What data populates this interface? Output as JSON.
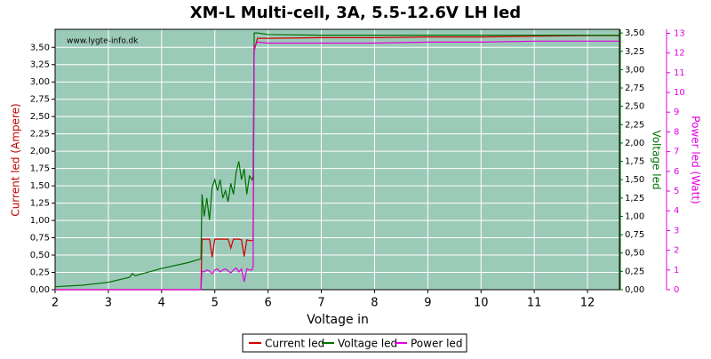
{
  "chart_data": {
    "type": "line",
    "title": "XM-L Multi-cell, 3A, 5.5-12.6V LH led",
    "watermark": "www.lygte-info.dk",
    "x_label": "Voltage in",
    "y_label": "Current led (Ampere)",
    "y2_label": "Voltage led",
    "y3_label": "Power led (Watt)",
    "xlim": [
      2,
      12.6
    ],
    "xticks": [
      2,
      3,
      4,
      5,
      6,
      7,
      8,
      9,
      10,
      11,
      12
    ],
    "ylim": [
      0,
      3.76
    ],
    "yticks": [
      {
        "value": 0,
        "label": "0,00"
      },
      {
        "value": 0.25,
        "label": "0,25"
      },
      {
        "value": 0.5,
        "label": "0,50"
      },
      {
        "value": 0.75,
        "label": "0,75"
      },
      {
        "value": 1,
        "label": "1,00"
      },
      {
        "value": 1.25,
        "label": "1,25"
      },
      {
        "value": 1.5,
        "label": "1,50"
      },
      {
        "value": 1.75,
        "label": "1,75"
      },
      {
        "value": 2,
        "label": "2,00"
      },
      {
        "value": 2.25,
        "label": "2,25"
      },
      {
        "value": 2.5,
        "label": "2,50"
      },
      {
        "value": 2.75,
        "label": "2,75"
      },
      {
        "value": 3,
        "label": "3,00"
      },
      {
        "value": 3.25,
        "label": "3,25"
      },
      {
        "value": 3.5,
        "label": "3,50"
      }
    ],
    "y2lim": [
      0,
      3.55
    ],
    "y2ticks": [
      {
        "value": 0,
        "label": "0,00"
      },
      {
        "value": 0.25,
        "label": "0,25"
      },
      {
        "value": 0.5,
        "label": "0,50"
      },
      {
        "value": 0.75,
        "label": "0,75"
      },
      {
        "value": 1,
        "label": "1,00"
      },
      {
        "value": 1.25,
        "label": "1,25"
      },
      {
        "value": 1.5,
        "label": "1,50"
      },
      {
        "value": 1.75,
        "label": "1,75"
      },
      {
        "value": 2,
        "label": "2,00"
      },
      {
        "value": 2.25,
        "label": "2,25"
      },
      {
        "value": 2.5,
        "label": "2,50"
      },
      {
        "value": 2.75,
        "label": "2,75"
      },
      {
        "value": 3,
        "label": "3,00"
      },
      {
        "value": 3.25,
        "label": "3,25"
      },
      {
        "value": 3.5,
        "label": "3,50"
      }
    ],
    "y3lim": [
      0,
      13.2
    ],
    "y3ticks": [
      0,
      1,
      2,
      3,
      4,
      5,
      6,
      7,
      8,
      9,
      10,
      11,
      12,
      13
    ],
    "grid": true,
    "x": [
      2,
      2.5,
      3,
      3.4,
      3.45,
      3.5,
      4,
      4.5,
      4.74,
      4.76,
      4.8,
      4.85,
      4.9,
      4.95,
      5.0,
      5.05,
      5.1,
      5.15,
      5.2,
      5.25,
      5.3,
      5.35,
      5.4,
      5.45,
      5.5,
      5.55,
      5.6,
      5.65,
      5.7,
      5.72,
      5.74,
      5.8,
      6,
      7,
      8,
      9,
      10,
      11,
      12,
      12.6
    ],
    "series": [
      {
        "name": "Current led",
        "color": "#d00000",
        "axis": "y",
        "values": [
          0,
          0,
          0,
          0,
          0,
          0,
          0,
          0,
          0,
          0.73,
          0.73,
          0.73,
          0.73,
          0.47,
          0.73,
          0.73,
          0.73,
          0.73,
          0.73,
          0.73,
          0.6,
          0.73,
          0.73,
          0.73,
          0.72,
          0.48,
          0.72,
          0.71,
          0.71,
          0.71,
          3.45,
          3.63,
          3.63,
          3.64,
          3.64,
          3.65,
          3.65,
          3.66,
          3.67,
          3.67
        ]
      },
      {
        "name": "Voltage led",
        "color": "#007000",
        "axis": "y2",
        "values": [
          0.04,
          0.06,
          0.1,
          0.17,
          0.22,
          0.19,
          0.29,
          0.37,
          0.42,
          1.3,
          1.0,
          1.25,
          0.95,
          1.4,
          1.5,
          1.35,
          1.5,
          1.25,
          1.35,
          1.2,
          1.45,
          1.3,
          1.6,
          1.75,
          1.5,
          1.65,
          1.3,
          1.55,
          1.5,
          1.55,
          3.5,
          3.5,
          3.48,
          3.47,
          3.47,
          3.47,
          3.47,
          3.47,
          3.47,
          3.47
        ]
      },
      {
        "name": "Power led",
        "color": "#e000e0",
        "axis": "y3",
        "values": [
          0,
          0,
          0,
          0,
          0,
          0,
          0,
          0,
          0,
          0.95,
          0.9,
          1.0,
          0.95,
          0.8,
          1.0,
          1.05,
          0.9,
          1.0,
          1.05,
          0.95,
          0.85,
          1.0,
          1.1,
          0.9,
          1.05,
          0.4,
          1.05,
          1.0,
          1.0,
          1.2,
          12.3,
          12.55,
          12.5,
          12.5,
          12.5,
          12.55,
          12.55,
          12.6,
          12.6,
          12.6
        ]
      }
    ]
  }
}
